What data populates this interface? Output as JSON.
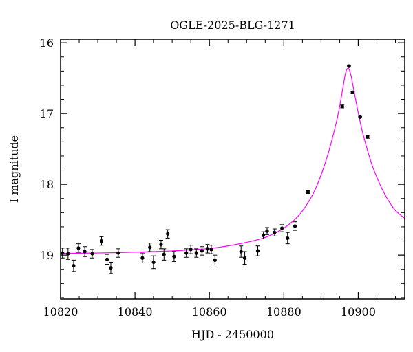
{
  "chart_data": {
    "type": "scatter",
    "title": "OGLE-2025-BLG-1271",
    "xlabel": "HJD - 2450000",
    "ylabel": "I magnitude",
    "xlim": [
      10820,
      10912.5
    ],
    "ylim": [
      19.62,
      15.95
    ],
    "y_inverted": true,
    "grid": false,
    "legend": "none",
    "x_ticks": [
      10820,
      10840,
      10860,
      10880,
      10900
    ],
    "y_ticks": [
      16,
      17,
      18,
      19
    ],
    "colors": {
      "points": "#000000",
      "model": "#ff00ff"
    },
    "series": [
      {
        "kind": "points",
        "x": [
          10820.5,
          10822.0,
          10823.5,
          10824.8,
          10826.5,
          10828.5,
          10831.0,
          10832.5,
          10833.5,
          10835.5,
          10842.0,
          10844.0,
          10845.0,
          10847.0,
          10847.8,
          10848.8,
          10850.5,
          10853.8,
          10855.0,
          10856.5,
          10858.0,
          10859.5,
          10860.5,
          10861.5,
          10868.5,
          10869.5,
          10873.0,
          10874.5,
          10875.5,
          10877.5,
          10879.5,
          10881.0,
          10883.0,
          10886.5,
          10895.7,
          10897.5,
          10898.5,
          10900.5,
          10902.5
        ],
        "y": [
          18.97,
          18.98,
          19.15,
          18.9,
          18.95,
          18.98,
          18.8,
          19.06,
          19.18,
          18.97,
          19.04,
          18.89,
          19.1,
          18.85,
          18.99,
          18.7,
          19.02,
          18.97,
          18.92,
          18.97,
          18.94,
          18.91,
          18.92,
          19.07,
          18.95,
          19.04,
          18.94,
          18.72,
          18.66,
          18.68,
          18.62,
          18.76,
          18.59,
          18.11,
          16.9,
          16.33,
          16.7,
          17.05,
          17.33
        ],
        "err": [
          0.07,
          0.08,
          0.08,
          0.06,
          0.07,
          0.06,
          0.06,
          0.07,
          0.08,
          0.06,
          0.07,
          0.06,
          0.09,
          0.06,
          0.08,
          0.06,
          0.07,
          0.06,
          0.06,
          0.06,
          0.06,
          0.06,
          0.06,
          0.07,
          0.08,
          0.09,
          0.07,
          0.05,
          0.05,
          0.05,
          0.05,
          0.08,
          0.06,
          0.02,
          0.02,
          0.01,
          0.01,
          0.01,
          0.02
        ]
      },
      {
        "kind": "model",
        "x": [
          10820,
          10825,
          10830,
          10835,
          10840,
          10845,
          10850,
          10855,
          10860,
          10863,
          10866,
          10869,
          10872,
          10875,
          10878,
          10880,
          10882,
          10884,
          10886,
          10888,
          10890,
          10892,
          10894,
          10895,
          10896,
          10896.5,
          10897,
          10897.5,
          10898,
          10898.5,
          10899,
          10900,
          10901,
          10902,
          10903,
          10904,
          10906,
          10908,
          10910,
          10912.5
        ],
        "y": [
          18.975,
          18.973,
          18.97,
          18.965,
          18.958,
          18.95,
          18.94,
          18.925,
          18.905,
          18.885,
          18.86,
          18.83,
          18.795,
          18.75,
          18.68,
          18.62,
          18.54,
          18.44,
          18.3,
          18.12,
          17.87,
          17.55,
          17.15,
          16.9,
          16.6,
          16.45,
          16.37,
          16.37,
          16.45,
          16.58,
          16.72,
          16.99,
          17.23,
          17.43,
          17.61,
          17.77,
          18.02,
          18.22,
          18.37,
          18.48
        ]
      }
    ]
  }
}
